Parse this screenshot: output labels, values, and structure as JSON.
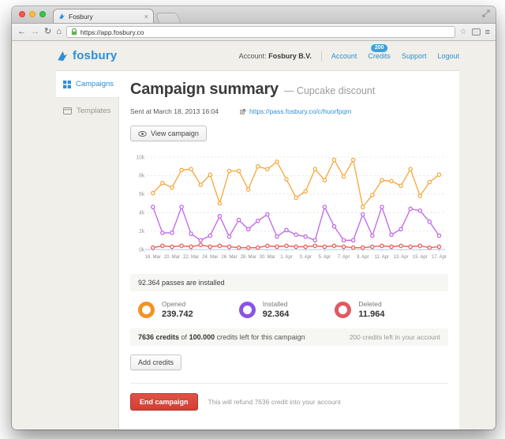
{
  "browser": {
    "tab_title": "Fosbury",
    "tab_close": "×",
    "url": "https://app.fosbury.co",
    "back": "←",
    "forward": "→",
    "reload": "↻",
    "home": "⌂",
    "star": "☆",
    "menu": "≡"
  },
  "header": {
    "logo_text": "fosbury",
    "account_label": "Account:",
    "account_name": "Fosbury B.V.",
    "nav": [
      {
        "label": "Account"
      },
      {
        "label": "Credits",
        "badge": "200"
      },
      {
        "label": "Support"
      },
      {
        "label": "Logout"
      }
    ]
  },
  "sidebar": {
    "items": [
      {
        "label": "Campaigns",
        "active": true
      },
      {
        "label": "Templates",
        "active": false
      }
    ]
  },
  "main": {
    "title": "Campaign summary",
    "subtitle": "— Cupcake discount",
    "sent_at": "Sent at March 18, 2013 16:04",
    "campaign_url": "https://pass.fosbury.co/c/huorfpqm",
    "view_campaign_label": "View campaign",
    "installed_banner": "92.364 passes are installed",
    "stats": [
      {
        "label": "Opened",
        "value": "239.742",
        "color": "#f59123"
      },
      {
        "label": "Installed",
        "value": "92.364",
        "color": "#8a53e8"
      },
      {
        "label": "Deleted",
        "value": "11.964",
        "color": "#e05a60"
      }
    ],
    "credits": {
      "bold1": "7636 credits",
      "mid": " of ",
      "bold2": "100.000",
      "rest": " credits left for this campaign",
      "account_note": "200 credits left in your account",
      "add_button": "Add credits"
    },
    "end": {
      "button": "End campaign",
      "note": "This will refund 7636 credit into your account"
    }
  },
  "chart_data": {
    "type": "line",
    "x": [
      "18. Mar",
      "19. Mar",
      "20. Mar",
      "21. Mar",
      "22. Mar",
      "23. Mar",
      "24. Mar",
      "25. Mar",
      "26. Mar",
      "27. Mar",
      "28. Mar",
      "29. Mar",
      "30. Mar",
      "31. Mar",
      "1. Apr",
      "2. Apr",
      "3. Apr",
      "4. Apr",
      "5. Apr",
      "6. Apr",
      "7. Apr",
      "8. Apr",
      "9. Apr",
      "10. Apr",
      "11. Apr",
      "12. Apr",
      "13. Apr",
      "14. Apr",
      "15. Apr",
      "16. Apr",
      "17. Apr"
    ],
    "x_label_every": 2,
    "ylim": [
      0,
      10
    ],
    "ytick_values": [
      0,
      2,
      4,
      6,
      8,
      10
    ],
    "ytick_labels": [
      "0k",
      "2k",
      "4k",
      "6k",
      "8k",
      "10k"
    ],
    "unit": "thousands",
    "grid": "horizontal-dashed",
    "legend_position": "below",
    "series": [
      {
        "name": "Opened",
        "color": "#f5a93f",
        "values": [
          6.1,
          7.2,
          6.7,
          8.6,
          8.7,
          7.0,
          8.1,
          5.0,
          8.5,
          8.5,
          6.5,
          9.0,
          8.7,
          9.5,
          7.6,
          5.6,
          6.3,
          8.7,
          7.5,
          9.7,
          7.9,
          9.7,
          4.6,
          5.9,
          7.5,
          7.4,
          6.9,
          8.7,
          5.8,
          7.3,
          8.1
        ]
      },
      {
        "name": "Installed",
        "color": "#c06ae8",
        "values": [
          4.6,
          1.8,
          1.8,
          4.6,
          1.7,
          1.0,
          1.5,
          3.6,
          1.4,
          3.2,
          2.2,
          3.1,
          3.8,
          1.4,
          2.1,
          1.6,
          1.4,
          1.0,
          4.6,
          2.5,
          1.0,
          1.0,
          3.8,
          1.5,
          4.6,
          1.6,
          2.2,
          4.4,
          4.2,
          3.0,
          1.5
        ]
      },
      {
        "name": "Deleted",
        "color": "#ed5f55",
        "values": [
          0.2,
          0.4,
          0.3,
          0.4,
          0.3,
          0.5,
          0.3,
          0.4,
          0.3,
          0.2,
          0.2,
          0.2,
          0.4,
          0.3,
          0.4,
          0.3,
          0.3,
          0.4,
          0.3,
          0.4,
          0.3,
          0.2,
          0.2,
          0.3,
          0.4,
          0.3,
          0.4,
          0.3,
          0.4,
          0.2,
          0.3
        ]
      }
    ]
  }
}
